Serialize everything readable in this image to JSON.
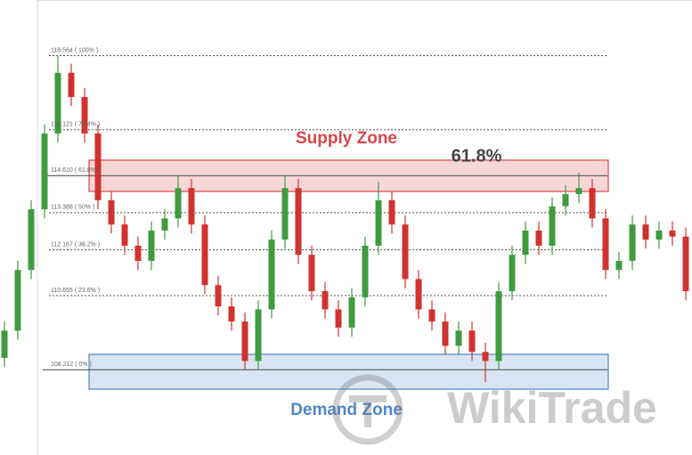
{
  "chart_data": {
    "type": "candlestick",
    "ylim": [
      105.4,
      120.4
    ],
    "yticks": [
      {
        "value": 118.564,
        "label": "118.564 ( 100% )"
      },
      {
        "value": 116.121,
        "label": "116.121 ( 76.4% )"
      },
      {
        "value": 114.61,
        "label": "114.610 ( 61.8% )"
      },
      {
        "value": 113.388,
        "label": "113.388 ( 50% )"
      },
      {
        "value": 112.167,
        "label": "112.167 ( 38.2% )"
      },
      {
        "value": 110.655,
        "label": "110.655 ( 23.6% )"
      },
      {
        "value": 108.212,
        "label": "108.212 ( 0% )"
      }
    ],
    "up_color": "#3f9b3f",
    "down_color": "#d0332f",
    "zones": [
      {
        "label": "Supply Zone",
        "range": [
          114.09,
          115.12
        ],
        "color": "#d9464b"
      },
      {
        "label": "Demand Zone",
        "range": [
          107.57,
          108.72
        ],
        "color": "#4f86c6"
      }
    ],
    "annotation": "61.8%",
    "watermark": "WikiTrade",
    "open": [
      108.6,
      109.5,
      111.5,
      113.5,
      116.0,
      118.0,
      117.2,
      116.0,
      113.8,
      113.0,
      112.3,
      111.8,
      112.8,
      113.2,
      114.2,
      113.0,
      111.0,
      110.3,
      109.8,
      108.5,
      110.2,
      112.5,
      114.2,
      112.0,
      110.8,
      110.2,
      109.6,
      110.6,
      112.3,
      113.8,
      113.0,
      111.2,
      110.2,
      109.8,
      109.0,
      109.5,
      108.8,
      108.5,
      110.8,
      112.0,
      112.8,
      112.3,
      113.6,
      114.0,
      114.2,
      113.2,
      111.5,
      111.8,
      113.0,
      112.5,
      112.8,
      112.6
    ],
    "high": [
      109.8,
      111.8,
      113.8,
      116.3,
      118.55,
      118.3,
      117.5,
      116.3,
      114.1,
      113.3,
      112.6,
      113.1,
      113.5,
      114.6,
      114.5,
      113.3,
      111.3,
      110.6,
      110.1,
      110.5,
      112.8,
      114.6,
      114.5,
      112.3,
      111.1,
      110.5,
      110.9,
      112.6,
      114.4,
      114.1,
      113.3,
      111.5,
      110.5,
      110.1,
      109.8,
      109.8,
      109.1,
      111.1,
      112.3,
      113.1,
      113.1,
      113.9,
      114.3,
      114.7,
      114.5,
      113.5,
      112.1,
      113.3,
      113.3,
      113.1,
      113.1,
      112.9
    ],
    "low": [
      108.3,
      109.2,
      111.2,
      113.2,
      115.7,
      116.9,
      115.7,
      113.5,
      112.7,
      112.0,
      111.5,
      111.5,
      112.5,
      112.9,
      112.7,
      110.7,
      110.0,
      109.5,
      108.2,
      108.2,
      109.9,
      112.2,
      111.7,
      110.5,
      109.9,
      109.3,
      109.3,
      110.3,
      112.0,
      112.7,
      110.9,
      109.9,
      109.5,
      108.7,
      108.7,
      108.5,
      107.8,
      108.2,
      110.5,
      111.7,
      112.0,
      112.0,
      113.3,
      113.7,
      112.9,
      111.2,
      111.2,
      111.5,
      112.2,
      112.2,
      112.3,
      110.5
    ],
    "close": [
      109.5,
      111.5,
      113.5,
      116.0,
      118.0,
      117.2,
      116.0,
      113.8,
      113.0,
      112.3,
      111.8,
      112.8,
      113.2,
      114.2,
      113.0,
      111.0,
      110.3,
      109.8,
      108.5,
      110.2,
      112.5,
      114.2,
      112.0,
      110.8,
      110.2,
      109.6,
      110.6,
      112.3,
      113.8,
      113.0,
      111.2,
      110.2,
      109.8,
      109.0,
      109.5,
      108.8,
      108.5,
      110.8,
      112.0,
      112.8,
      112.3,
      113.6,
      114.0,
      114.2,
      113.2,
      111.5,
      111.8,
      113.0,
      112.5,
      112.8,
      112.6,
      110.8
    ]
  }
}
